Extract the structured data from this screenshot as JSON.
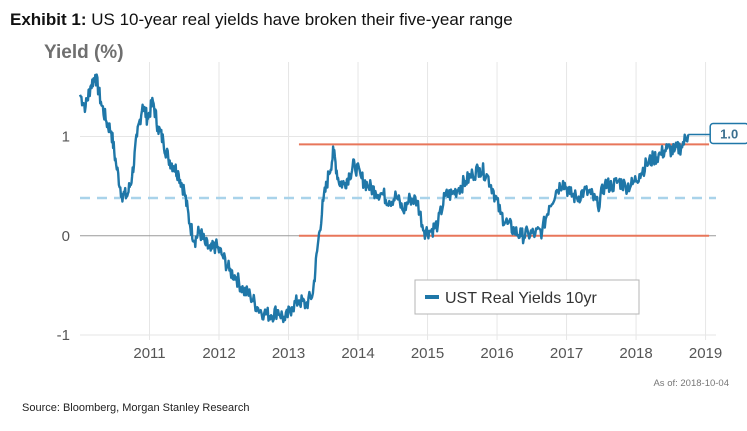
{
  "header": {
    "exhibit": "Exhibit 1:",
    "title": "US 10-year real yields have broken their five-year range"
  },
  "footer": {
    "as_of": "As of:  2018-10-04",
    "source": "Source: Bloomberg, Morgan Stanley Research"
  },
  "colors": {
    "series": "#1f77a8",
    "range_lines": "#e8765a",
    "mean_line": "#a9d3ea",
    "zero_line": "#9a9a9a",
    "grid": "#e6e6e6"
  },
  "chart_data": {
    "type": "line",
    "title": "US 10-year real yields have broken their five-year range",
    "ylabel": "Yield (%)",
    "xlim": [
      2010.0,
      2019.15
    ],
    "ylim": [
      -1.05,
      1.75
    ],
    "x_ticks": [
      2011,
      2012,
      2013,
      2014,
      2015,
      2016,
      2017,
      2018,
      2019
    ],
    "y_ticks": [
      -1,
      0,
      1
    ],
    "grid": true,
    "legend": {
      "position": "bottom-right"
    },
    "series": [
      {
        "name": "UST Real Yields 10yr",
        "x": [
          2010.0,
          2010.08,
          2010.15,
          2010.22,
          2010.3,
          2010.38,
          2010.45,
          2010.52,
          2010.6,
          2010.68,
          2010.75,
          2010.82,
          2010.9,
          2010.97,
          2011.05,
          2011.12,
          2011.2,
          2011.27,
          2011.35,
          2011.42,
          2011.5,
          2011.58,
          2011.65,
          2011.72,
          2011.8,
          2011.88,
          2011.95,
          2012.05,
          2012.15,
          2012.25,
          2012.35,
          2012.45,
          2012.55,
          2012.65,
          2012.75,
          2012.85,
          2012.95,
          2013.05,
          2013.15,
          2013.25,
          2013.35,
          2013.42,
          2013.5,
          2013.58,
          2013.65,
          2013.72,
          2013.8,
          2013.88,
          2013.95,
          2014.05,
          2014.15,
          2014.25,
          2014.35,
          2014.45,
          2014.55,
          2014.65,
          2014.75,
          2014.85,
          2014.95,
          2015.05,
          2015.15,
          2015.25,
          2015.35,
          2015.45,
          2015.55,
          2015.65,
          2015.75,
          2015.85,
          2015.95,
          2016.05,
          2016.15,
          2016.25,
          2016.35,
          2016.45,
          2016.55,
          2016.65,
          2016.75,
          2016.85,
          2016.95,
          2017.05,
          2017.15,
          2017.25,
          2017.35,
          2017.45,
          2017.55,
          2017.65,
          2017.75,
          2017.85,
          2017.95,
          2018.05,
          2018.15,
          2018.25,
          2018.35,
          2018.45,
          2018.55,
          2018.65,
          2018.75
        ],
        "values": [
          1.42,
          1.3,
          1.5,
          1.62,
          1.35,
          1.15,
          1.05,
          0.72,
          0.42,
          0.4,
          0.6,
          1.0,
          1.32,
          1.18,
          1.35,
          1.1,
          0.95,
          0.78,
          0.7,
          0.62,
          0.45,
          0.12,
          -0.05,
          0.05,
          -0.08,
          -0.15,
          -0.1,
          -0.2,
          -0.35,
          -0.42,
          -0.55,
          -0.6,
          -0.72,
          -0.78,
          -0.8,
          -0.75,
          -0.85,
          -0.72,
          -0.65,
          -0.7,
          -0.58,
          -0.1,
          0.35,
          0.62,
          0.85,
          0.55,
          0.52,
          0.62,
          0.72,
          0.58,
          0.5,
          0.45,
          0.42,
          0.35,
          0.4,
          0.25,
          0.38,
          0.35,
          0.05,
          0.05,
          0.12,
          0.4,
          0.42,
          0.48,
          0.55,
          0.62,
          0.68,
          0.62,
          0.45,
          0.22,
          0.12,
          0.05,
          0.0,
          0.02,
          0.02,
          0.05,
          0.3,
          0.45,
          0.55,
          0.42,
          0.38,
          0.45,
          0.42,
          0.3,
          0.52,
          0.5,
          0.55,
          0.5,
          0.52,
          0.62,
          0.72,
          0.78,
          0.82,
          0.88,
          0.85,
          0.9,
          1.02
        ]
      }
    ],
    "reference_lines": [
      {
        "value": 0.92,
        "style": "solid",
        "from_x": 2013.15,
        "to_x": 2019.05
      },
      {
        "value": 0.0,
        "style": "solid",
        "from_x": 2013.15,
        "to_x": 2019.05
      },
      {
        "value": 0.38,
        "style": "dashed",
        "from_x": 2010.0,
        "to_x": 2019.15
      }
    ],
    "callout": {
      "x": 2018.75,
      "value": 1.02,
      "label": "1.0"
    }
  }
}
